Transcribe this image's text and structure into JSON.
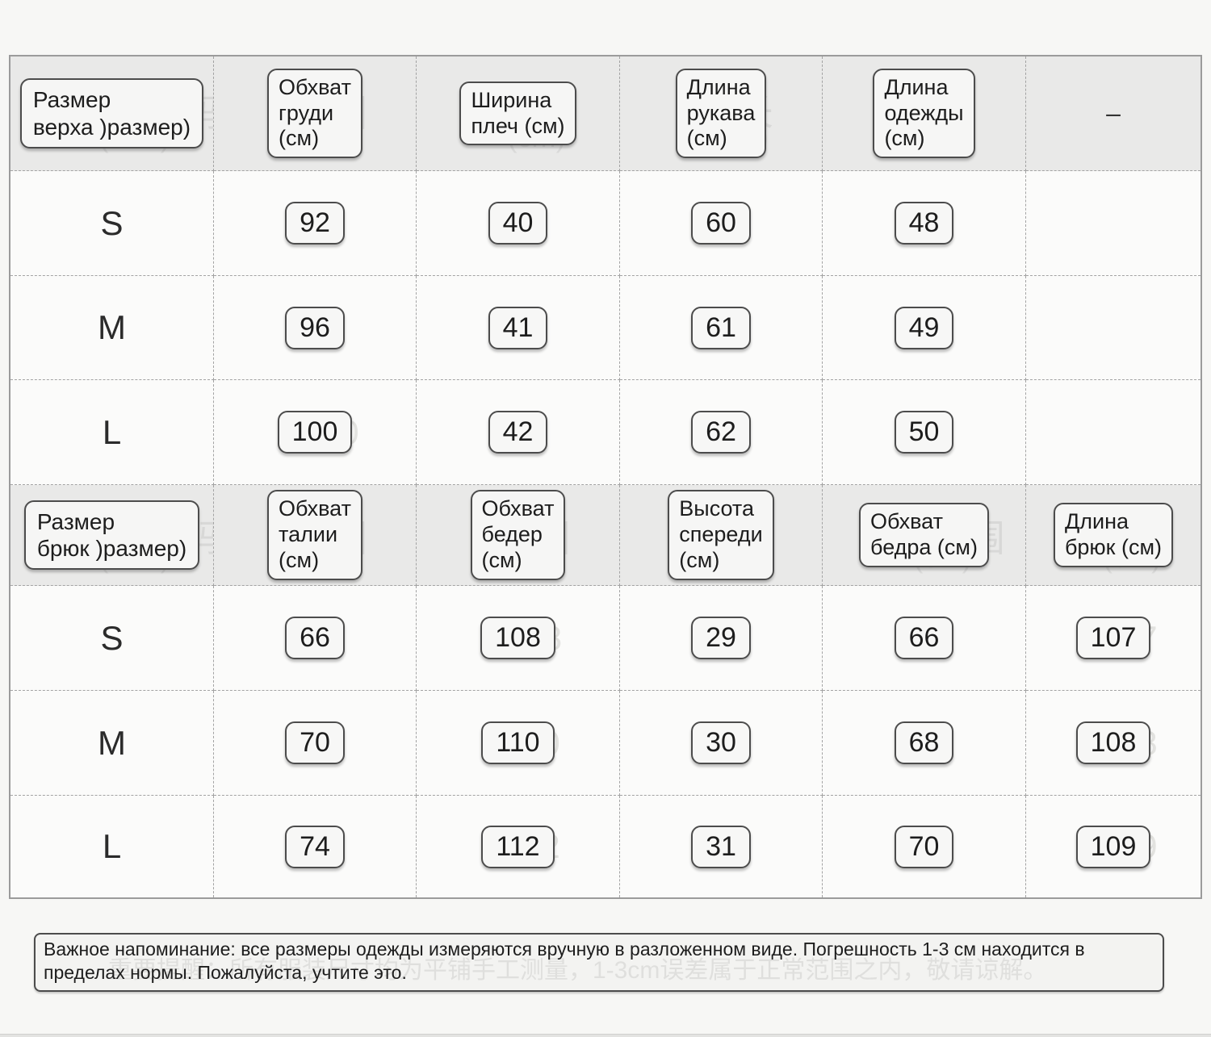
{
  "table": {
    "sections": [
      {
        "name": "upper-garment",
        "header": [
          {
            "label": "Размер\nверха )размер)",
            "ghost": "上衣尺码",
            "ghost_sub": "(size)"
          },
          {
            "label": "Обхват\nгруди\n(см)",
            "ghost": "胸围",
            "ghost_sub": "(cm)"
          },
          {
            "label": "Ширина\nплеч (см)",
            "ghost": "肩宽",
            "ghost_sub": "(cm)"
          },
          {
            "label": "Длина\nрукава\n(см)",
            "ghost": "袖长",
            "ghost_sub": "(cm)"
          },
          {
            "label": "Длина\nодежды\n(см)",
            "ghost": "衣长",
            "ghost_sub": "(cm)"
          },
          {
            "label": "–",
            "plain": true
          }
        ],
        "rows": [
          {
            "size": "S",
            "values": [
              "92",
              "40",
              "60",
              "48",
              ""
            ]
          },
          {
            "size": "M",
            "values": [
              "96",
              "41",
              "61",
              "49",
              ""
            ]
          },
          {
            "size": "L",
            "values": [
              "100",
              "42",
              "62",
              "50",
              ""
            ]
          }
        ]
      },
      {
        "name": "pants",
        "header": [
          {
            "label": "Размер\nбрюк )размер)",
            "ghost": "裤子尺码",
            "ghost_sub": "(size)"
          },
          {
            "label": "Обхват\nталии\n(см)",
            "ghost": "腰围",
            "ghost_sub": "(cm)"
          },
          {
            "label": "Обхват\nбедер\n(см)",
            "ghost": "臀围",
            "ghost_sub": "(cm)"
          },
          {
            "label": "Высота\nспереди\n(см)",
            "ghost": "前裆",
            "ghost_sub": "(cm)"
          },
          {
            "label": "Обхват\nбедра (см)",
            "ghost": "大腿围",
            "ghost_sub": "(cm)"
          },
          {
            "label": "Длина\nбрюк (см)",
            "ghost": "裤长",
            "ghost_sub": "(cm)"
          }
        ],
        "rows": [
          {
            "size": "S",
            "values": [
              "66",
              "108",
              "29",
              "66",
              "107"
            ]
          },
          {
            "size": "M",
            "values": [
              "70",
              "110",
              "30",
              "68",
              "108"
            ]
          },
          {
            "size": "L",
            "values": [
              "74",
              "112",
              "31",
              "70",
              "109"
            ]
          }
        ]
      }
    ]
  },
  "note": {
    "text": "Важное напоминание: все размеры одежды измеряются вручную в разложенном виде. Погрешность 1-3 см находится в пределах нормы. Пожалуйста, учтите это.",
    "ghost": "重要提醒：所有服装尺寸均为平铺手工测量，1-3cm误差属于正常范围之内，敬请谅解。"
  }
}
